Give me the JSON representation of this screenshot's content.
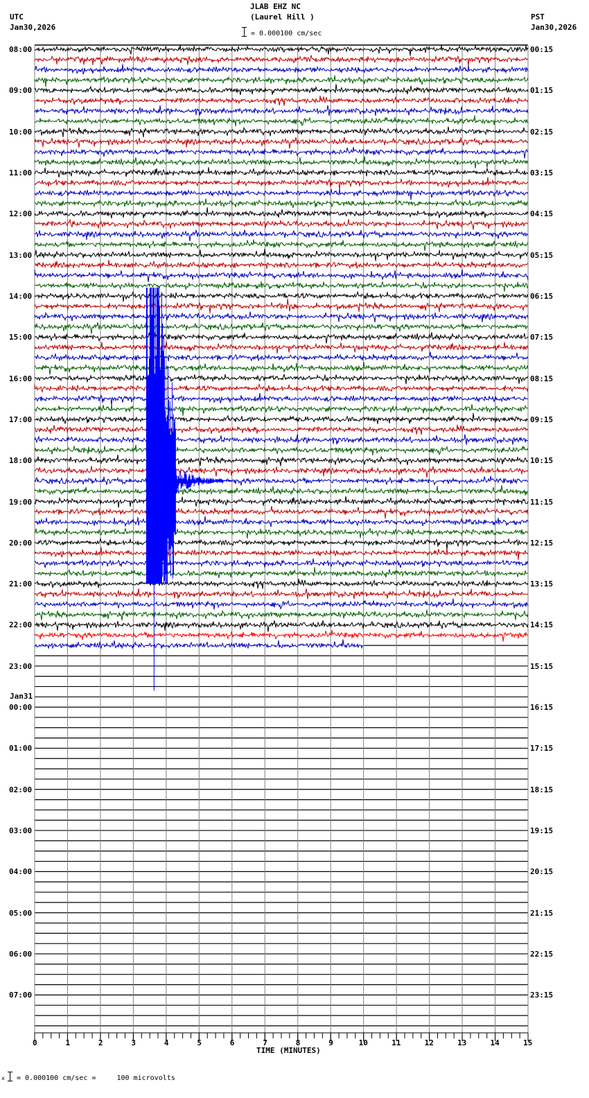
{
  "header": {
    "station": "JLAB EHZ NC",
    "location": "(Laurel Hill )",
    "scale_text": "= 0.000100 cm/sec",
    "left_tz": "UTC",
    "left_date": "Jan30,2026",
    "right_tz": "PST",
    "right_date": "Jan30,2026"
  },
  "footer": {
    "scale_text": "= 0.000100 cm/sec =     100 microvolts",
    "prefix": "x"
  },
  "chart_data": {
    "type": "line",
    "title": "JLAB EHZ NC (Laurel Hill )",
    "subtitle": "Helicorder 24h seismogram, 15-minute rows",
    "xlabel": "TIME (MINUTES)",
    "ylabel": "",
    "x_ticks": [
      "0",
      "1",
      "2",
      "3",
      "4",
      "5",
      "6",
      "7",
      "8",
      "9",
      "10",
      "11",
      "12",
      "13",
      "14",
      "15"
    ],
    "xlim": [
      0,
      15
    ],
    "rows_per_hour": 4,
    "total_rows": 96,
    "left_labels": [
      {
        "row": 0,
        "text": "08:00"
      },
      {
        "row": 4,
        "text": "09:00"
      },
      {
        "row": 8,
        "text": "10:00"
      },
      {
        "row": 12,
        "text": "11:00"
      },
      {
        "row": 16,
        "text": "12:00"
      },
      {
        "row": 20,
        "text": "13:00"
      },
      {
        "row": 24,
        "text": "14:00"
      },
      {
        "row": 28,
        "text": "15:00"
      },
      {
        "row": 32,
        "text": "16:00"
      },
      {
        "row": 36,
        "text": "17:00"
      },
      {
        "row": 40,
        "text": "18:00"
      },
      {
        "row": 44,
        "text": "19:00"
      },
      {
        "row": 48,
        "text": "20:00"
      },
      {
        "row": 52,
        "text": "21:00"
      },
      {
        "row": 56,
        "text": "22:00"
      },
      {
        "row": 60,
        "text": "23:00"
      },
      {
        "row": 64,
        "text": "00:00",
        "above": "Jan31"
      },
      {
        "row": 68,
        "text": "01:00"
      },
      {
        "row": 72,
        "text": "02:00"
      },
      {
        "row": 76,
        "text": "03:00"
      },
      {
        "row": 80,
        "text": "04:00"
      },
      {
        "row": 84,
        "text": "05:00"
      },
      {
        "row": 88,
        "text": "06:00"
      },
      {
        "row": 92,
        "text": "07:00"
      }
    ],
    "right_labels": [
      {
        "row": 0,
        "text": "00:15"
      },
      {
        "row": 4,
        "text": "01:15"
      },
      {
        "row": 8,
        "text": "02:15"
      },
      {
        "row": 12,
        "text": "03:15"
      },
      {
        "row": 16,
        "text": "04:15"
      },
      {
        "row": 20,
        "text": "05:15"
      },
      {
        "row": 24,
        "text": "06:15"
      },
      {
        "row": 28,
        "text": "07:15"
      },
      {
        "row": 32,
        "text": "08:15"
      },
      {
        "row": 36,
        "text": "09:15"
      },
      {
        "row": 40,
        "text": "10:15"
      },
      {
        "row": 44,
        "text": "11:15"
      },
      {
        "row": 48,
        "text": "12:15"
      },
      {
        "row": 52,
        "text": "13:15"
      },
      {
        "row": 56,
        "text": "14:15"
      },
      {
        "row": 60,
        "text": "15:15"
      },
      {
        "row": 64,
        "text": "16:15"
      },
      {
        "row": 68,
        "text": "17:15"
      },
      {
        "row": 72,
        "text": "18:15"
      },
      {
        "row": 76,
        "text": "19:15"
      },
      {
        "row": 80,
        "text": "20:15"
      },
      {
        "row": 84,
        "text": "21:15"
      },
      {
        "row": 88,
        "text": "22:15"
      },
      {
        "row": 92,
        "text": "23:15"
      }
    ],
    "trace_colors": [
      "#000000",
      "#c00000",
      "#0000c0",
      "#006000"
    ],
    "last_full_row_color": "#ff0000",
    "data_rows": 59,
    "last_row_end_minute": 10.0,
    "grid": true,
    "events": [
      {
        "label": "small local event",
        "row": 17,
        "minute": 1.05,
        "amplitude": 8,
        "duration_min": 0.4
      },
      {
        "label": "small local event",
        "row": 25,
        "minute": 7.65,
        "amplitude": 14,
        "duration_min": 0.5
      },
      {
        "label": "minor blip",
        "row": 12,
        "minute": 10.8,
        "amplitude": 4,
        "duration_min": 0.3
      },
      {
        "label": "large teleseism (overscaled)",
        "start_row": 24,
        "end_row": 64,
        "minute": 3.4,
        "peak_row": 42,
        "coda_end_minute": 6.0
      }
    ]
  }
}
